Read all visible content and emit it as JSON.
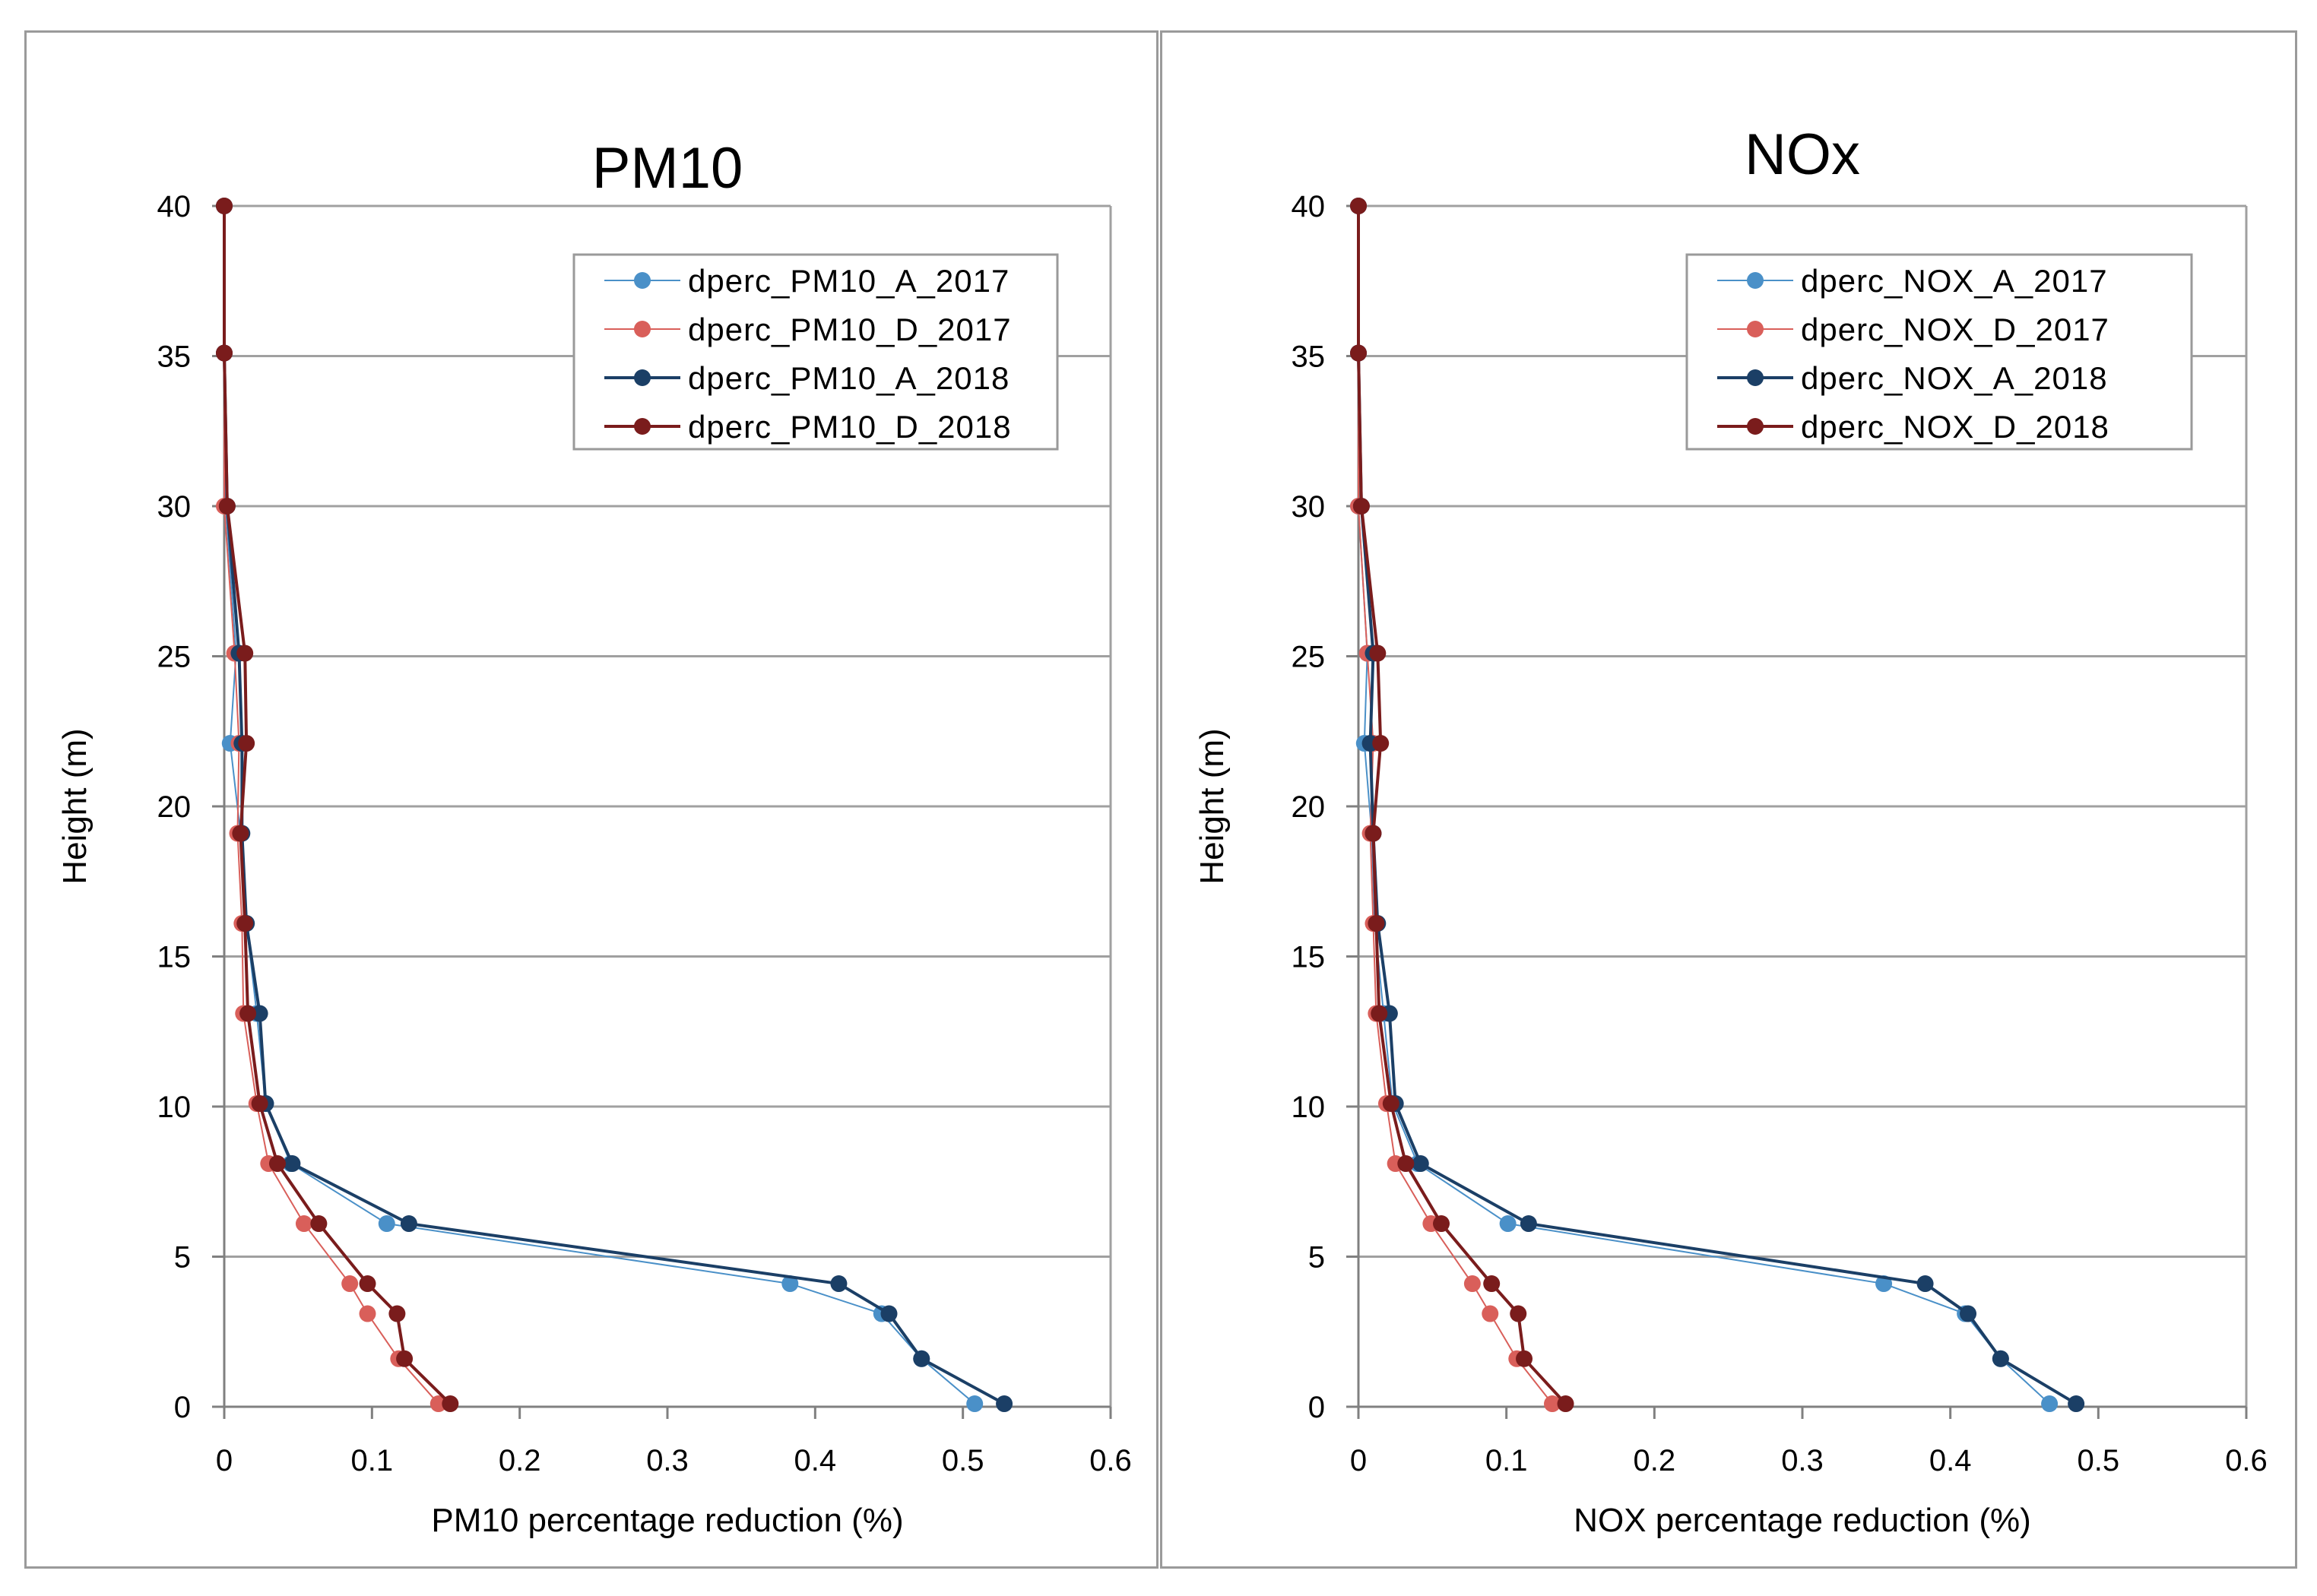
{
  "chart_data": [
    {
      "type": "line",
      "title": "PM10",
      "xlabel": "PM10 percentage  reduction (%)",
      "ylabel": "Height (m)",
      "xlim": [
        0,
        0.6
      ],
      "ylim": [
        0,
        40
      ],
      "x_ticks": [
        "0",
        "0.1",
        "0.2",
        "0.3",
        "0.4",
        "0.5",
        "0.6"
      ],
      "y_ticks": [
        "0",
        "5",
        "10",
        "15",
        "20",
        "25",
        "30",
        "35",
        "40"
      ],
      "grid": "horizontal",
      "legend_position": "top-right",
      "series": [
        {
          "name": "dperc_PM10_A_2017",
          "color": "#4a90c8",
          "stroke_width": 2,
          "points": [
            [
              0.508,
              0.1
            ],
            [
              0.472,
              1.6
            ],
            [
              0.445,
              3.1
            ],
            [
              0.383,
              4.1
            ],
            [
              0.11,
              6.1
            ],
            [
              0.045,
              8.1
            ],
            [
              0.028,
              10.1
            ],
            [
              0.022,
              13.1
            ],
            [
              0.015,
              16.1
            ],
            [
              0.011,
              19.1
            ],
            [
              0.004,
              22.1
            ],
            [
              0.008,
              25.1
            ],
            [
              0.001,
              30.0
            ],
            [
              0.0,
              35.1
            ],
            [
              0.0,
              40.0
            ]
          ]
        },
        {
          "name": "dperc_PM10_D_2017",
          "color": "#d95f5a",
          "stroke_width": 2,
          "points": [
            [
              0.145,
              0.1
            ],
            [
              0.118,
              1.6
            ],
            [
              0.097,
              3.1
            ],
            [
              0.085,
              4.1
            ],
            [
              0.054,
              6.1
            ],
            [
              0.03,
              8.1
            ],
            [
              0.022,
              10.1
            ],
            [
              0.013,
              13.1
            ],
            [
              0.012,
              16.1
            ],
            [
              0.009,
              19.1
            ],
            [
              0.01,
              22.1
            ],
            [
              0.007,
              25.1
            ],
            [
              0.0,
              30.0
            ],
            [
              0.0,
              35.1
            ],
            [
              0.0,
              40.0
            ]
          ]
        },
        {
          "name": "dperc_PM10_A_2018",
          "color": "#1b3f66",
          "stroke_width": 4,
          "points": [
            [
              0.528,
              0.1
            ],
            [
              0.472,
              1.6
            ],
            [
              0.45,
              3.1
            ],
            [
              0.416,
              4.1
            ],
            [
              0.125,
              6.1
            ],
            [
              0.046,
              8.1
            ],
            [
              0.028,
              10.1
            ],
            [
              0.024,
              13.1
            ],
            [
              0.015,
              16.1
            ],
            [
              0.012,
              19.1
            ],
            [
              0.012,
              22.1
            ],
            [
              0.01,
              25.1
            ],
            [
              0.002,
              30.0
            ],
            [
              0.0,
              35.1
            ],
            [
              0.0,
              40.0
            ]
          ]
        },
        {
          "name": "dperc_PM10_D_2018",
          "color": "#7a1c1c",
          "stroke_width": 4,
          "points": [
            [
              0.153,
              0.1
            ],
            [
              0.122,
              1.6
            ],
            [
              0.117,
              3.1
            ],
            [
              0.097,
              4.1
            ],
            [
              0.064,
              6.1
            ],
            [
              0.036,
              8.1
            ],
            [
              0.024,
              10.1
            ],
            [
              0.016,
              13.1
            ],
            [
              0.014,
              16.1
            ],
            [
              0.011,
              19.1
            ],
            [
              0.015,
              22.1
            ],
            [
              0.014,
              25.1
            ],
            [
              0.002,
              30.0
            ],
            [
              0.0,
              35.1
            ],
            [
              0.0,
              40.0
            ]
          ]
        }
      ]
    },
    {
      "type": "line",
      "title": "NOx",
      "xlabel": "NOX percentage  reduction (%)",
      "ylabel": "Height (m)",
      "xlim": [
        0,
        0.6
      ],
      "ylim": [
        0,
        40
      ],
      "x_ticks": [
        "0",
        "0.1",
        "0.2",
        "0.3",
        "0.4",
        "0.5",
        "0.6"
      ],
      "y_ticks": [
        "0",
        "5",
        "10",
        "15",
        "20",
        "25",
        "30",
        "35",
        "40"
      ],
      "grid": "horizontal",
      "legend_position": "top-right",
      "series": [
        {
          "name": "dperc_NOX_A_2017",
          "color": "#4a90c8",
          "stroke_width": 2,
          "points": [
            [
              0.467,
              0.1
            ],
            [
              0.434,
              1.6
            ],
            [
              0.41,
              3.1
            ],
            [
              0.355,
              4.1
            ],
            [
              0.101,
              6.1
            ],
            [
              0.04,
              8.1
            ],
            [
              0.023,
              10.1
            ],
            [
              0.017,
              13.1
            ],
            [
              0.011,
              16.1
            ],
            [
              0.009,
              19.1
            ],
            [
              0.004,
              22.1
            ],
            [
              0.006,
              25.1
            ],
            [
              0.0,
              30.0
            ],
            [
              0.0,
              35.1
            ],
            [
              0.0,
              40.0
            ]
          ]
        },
        {
          "name": "dperc_NOX_D_2017",
          "color": "#d95f5a",
          "stroke_width": 2,
          "points": [
            [
              0.131,
              0.1
            ],
            [
              0.107,
              1.6
            ],
            [
              0.089,
              3.1
            ],
            [
              0.077,
              4.1
            ],
            [
              0.049,
              6.1
            ],
            [
              0.025,
              8.1
            ],
            [
              0.019,
              10.1
            ],
            [
              0.012,
              13.1
            ],
            [
              0.01,
              16.1
            ],
            [
              0.008,
              19.1
            ],
            [
              0.01,
              22.1
            ],
            [
              0.006,
              25.1
            ],
            [
              0.0,
              30.0
            ],
            [
              0.0,
              35.1
            ],
            [
              0.0,
              40.0
            ]
          ]
        },
        {
          "name": "dperc_NOX_A_2018",
          "color": "#1b3f66",
          "stroke_width": 4,
          "points": [
            [
              0.485,
              0.1
            ],
            [
              0.434,
              1.6
            ],
            [
              0.412,
              3.1
            ],
            [
              0.383,
              4.1
            ],
            [
              0.115,
              6.1
            ],
            [
              0.042,
              8.1
            ],
            [
              0.025,
              10.1
            ],
            [
              0.021,
              13.1
            ],
            [
              0.013,
              16.1
            ],
            [
              0.01,
              19.1
            ],
            [
              0.008,
              22.1
            ],
            [
              0.01,
              25.1
            ],
            [
              0.002,
              30.0
            ],
            [
              0.0,
              35.1
            ],
            [
              0.0,
              40.0
            ]
          ]
        },
        {
          "name": "dperc_NOX_D_2018",
          "color": "#7a1c1c",
          "stroke_width": 4,
          "points": [
            [
              0.14,
              0.1
            ],
            [
              0.112,
              1.6
            ],
            [
              0.108,
              3.1
            ],
            [
              0.09,
              4.1
            ],
            [
              0.056,
              6.1
            ],
            [
              0.032,
              8.1
            ],
            [
              0.022,
              10.1
            ],
            [
              0.014,
              13.1
            ],
            [
              0.012,
              16.1
            ],
            [
              0.01,
              19.1
            ],
            [
              0.015,
              22.1
            ],
            [
              0.013,
              25.1
            ],
            [
              0.002,
              30.0
            ],
            [
              0.0,
              35.1
            ],
            [
              0.0,
              40.0
            ]
          ]
        }
      ]
    }
  ]
}
